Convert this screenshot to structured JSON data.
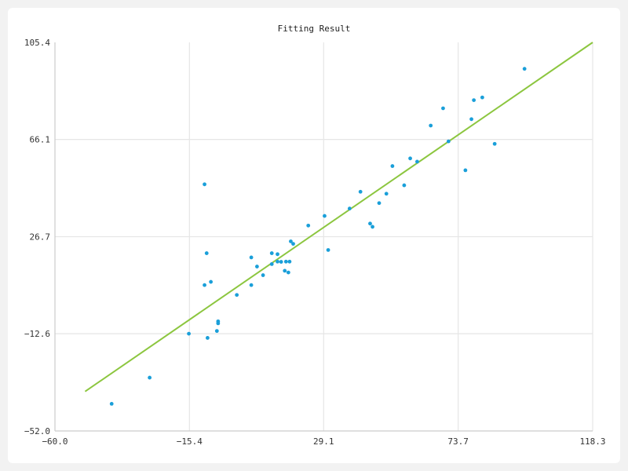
{
  "colors": {
    "points": "#1a9fd9",
    "fit_line": "#8cc63f",
    "grid": "#e6e6e6",
    "axis": "#cccccc",
    "card_background": "#ffffff",
    "page_background": "#f2f2f2"
  },
  "chart_data": {
    "type": "scatter",
    "title": "Fitting Result",
    "xlabel": "",
    "ylabel": "",
    "xlim": [
      -60.0,
      118.3
    ],
    "ylim": [
      -52.0,
      105.4
    ],
    "x_ticks": [
      -60.0,
      -15.4,
      29.1,
      73.7,
      118.3
    ],
    "x_tick_labels": [
      "−60.0",
      "−15.4",
      "29.1",
      "73.7",
      "118.3"
    ],
    "y_ticks": [
      -52.0,
      -12.6,
      26.7,
      66.1,
      105.4
    ],
    "y_tick_labels": [
      "−52.0",
      "−12.6",
      "26.7",
      "66.1",
      "105.4"
    ],
    "grid": true,
    "series": [
      {
        "type": "scatter",
        "x": [
          -41.2,
          -28.6,
          -15.6,
          -10.4,
          -9.7,
          -10.4,
          -9.4,
          -8.3,
          -6.3,
          -5.9,
          -5.9,
          0.3,
          5.1,
          5.1,
          7.0,
          9.0,
          11.9,
          11.9,
          13.8,
          13.8,
          15.0,
          16.2,
          16.6,
          17.4,
          17.8,
          18.2,
          19.0,
          24.0,
          29.4,
          30.6,
          37.7,
          41.3,
          44.5,
          45.3,
          47.5,
          49.9,
          51.9,
          55.8,
          57.8,
          60.1,
          64.6,
          68.7,
          70.5,
          76.1,
          78.1,
          78.9,
          81.7,
          85.8,
          95.7
        ],
        "y": [
          -41.0,
          -30.4,
          -12.6,
          47.9,
          20.0,
          7.1,
          -14.3,
          8.4,
          -11.5,
          -8.4,
          -7.6,
          3.1,
          7.1,
          18.3,
          14.6,
          11.1,
          15.6,
          20.0,
          16.6,
          19.6,
          16.5,
          12.9,
          16.6,
          12.2,
          16.6,
          24.8,
          23.8,
          31.2,
          35.1,
          21.3,
          38.1,
          44.9,
          32.0,
          30.7,
          40.3,
          44.1,
          55.3,
          47.5,
          58.4,
          57.1,
          71.7,
          78.7,
          65.3,
          53.6,
          74.3,
          82.0,
          83.1,
          64.3,
          94.7
        ]
      },
      {
        "type": "line",
        "name": "",
        "x": [
          -50.0,
          118.3
        ],
        "y": [
          -36.0,
          105.4
        ]
      }
    ]
  }
}
